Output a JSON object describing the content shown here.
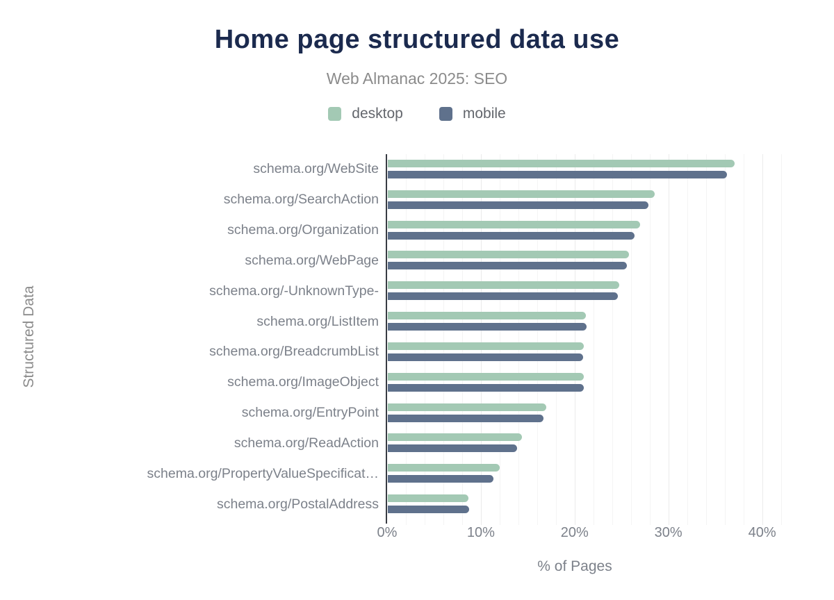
{
  "title": "Home page structured data use",
  "subtitle": "Web Almanac 2025: SEO",
  "axes": {
    "x_title": "% of Pages",
    "y_title": "Structured Data"
  },
  "colors": {
    "desktop": "#a3c9b4",
    "mobile": "#5f718c",
    "title_text": "#1b2a4e",
    "muted_text": "#7c818a",
    "axis_line": "#383c43",
    "background": "#ffffff"
  },
  "chart_data": {
    "type": "bar",
    "orientation": "horizontal",
    "title": "Home page structured data use",
    "subtitle": "Web Almanac 2025: SEO",
    "xlabel": "% of Pages",
    "ylabel": "Structured Data",
    "xlim": [
      0,
      40
    ],
    "xticks": [
      {
        "value": 0,
        "label": "0%"
      },
      {
        "value": 10,
        "label": "10%"
      },
      {
        "value": 20,
        "label": "20%"
      },
      {
        "value": 30,
        "label": "30%"
      },
      {
        "value": 40,
        "label": "40%"
      }
    ],
    "grid": "vertical, minor every 2%, major every 10%",
    "legend_position": "top-center",
    "categories": [
      "schema.org/WebSite",
      "schema.org/SearchAction",
      "schema.org/Organization",
      "schema.org/WebPage",
      "schema.org/-UnknownType-",
      "schema.org/ListItem",
      "schema.org/BreadcrumbList",
      "schema.org/ImageObject",
      "schema.org/EntryPoint",
      "schema.org/ReadAction",
      "schema.org/PropertyValueSpecificat…",
      "schema.org/PostalAddress"
    ],
    "series": [
      {
        "name": "desktop",
        "color": "#a3c9b4",
        "values": [
          37.0,
          28.5,
          26.9,
          25.7,
          24.7,
          21.1,
          20.9,
          20.9,
          16.9,
          14.3,
          11.9,
          8.6
        ]
      },
      {
        "name": "mobile",
        "color": "#5f718c",
        "values": [
          36.2,
          27.8,
          26.3,
          25.5,
          24.5,
          21.2,
          20.8,
          20.9,
          16.6,
          13.8,
          11.3,
          8.7
        ]
      }
    ]
  }
}
